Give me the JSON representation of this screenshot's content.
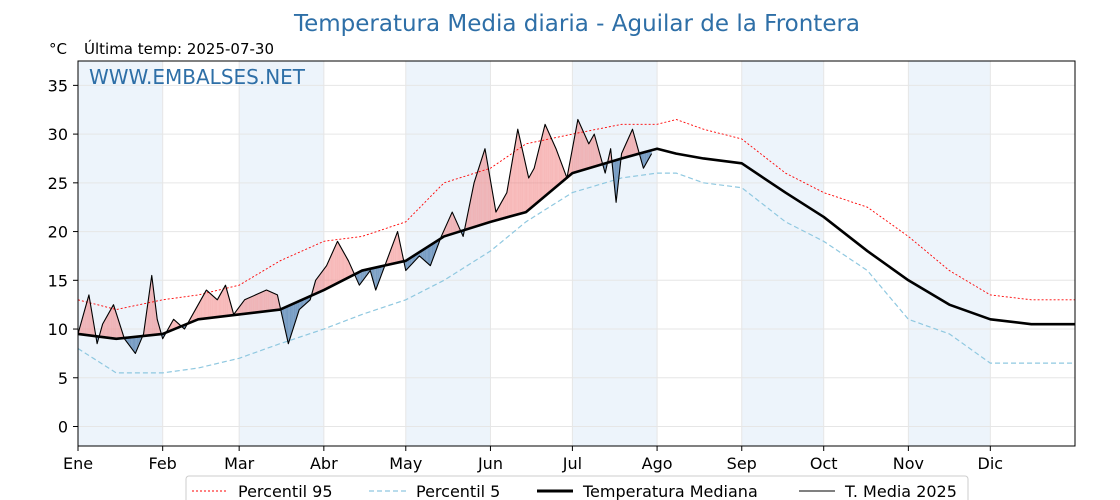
{
  "header": {
    "title": "Temperatura Media diaria - Aguilar de la Frontera",
    "unit": "°C",
    "subtitle": "Última temp: 2025-07-30",
    "watermark": "WWW.EMBALSES.NET"
  },
  "colors": {
    "p95": "#ff0000",
    "p5": "#8fc8e0",
    "median": "#000000",
    "current": "#000000",
    "above_fill": "#f08080",
    "below_fill": "#4f7fb0",
    "month_shade": "#e6f0fa"
  },
  "chart_data": {
    "type": "line",
    "title": "Temperatura Media diaria - Aguilar de la Frontera",
    "ylabel": "°C",
    "ylim": [
      -2,
      37.5
    ],
    "yticks": [
      0,
      5,
      10,
      15,
      20,
      25,
      30,
      35
    ],
    "xlim": [
      1,
      366
    ],
    "x_ticks": [
      {
        "label": "Ene",
        "day": 1
      },
      {
        "label": "Feb",
        "day": 32
      },
      {
        "label": "Mar",
        "day": 60
      },
      {
        "label": "Abr",
        "day": 91
      },
      {
        "label": "May",
        "day": 121
      },
      {
        "label": "Jun",
        "day": 152
      },
      {
        "label": "Jul",
        "day": 182
      },
      {
        "label": "Ago",
        "day": 213
      },
      {
        "label": "Sep",
        "day": 244
      },
      {
        "label": "Oct",
        "day": 274
      },
      {
        "label": "Nov",
        "day": 305
      },
      {
        "label": "Dic",
        "day": 335
      }
    ],
    "grid": true,
    "legend_placement": "bottom-center",
    "series": [
      {
        "name": "Percentil 95",
        "x": [
          1,
          15,
          32,
          45,
          60,
          75,
          91,
          105,
          121,
          135,
          152,
          165,
          182,
          200,
          213,
          220,
          230,
          244,
          260,
          274,
          290,
          305,
          320,
          335,
          350,
          366
        ],
        "values": [
          13.0,
          12.0,
          13.0,
          13.5,
          14.5,
          17.0,
          19.0,
          19.5,
          21.0,
          25.0,
          26.5,
          29.0,
          30.0,
          31.0,
          31.0,
          31.5,
          30.5,
          29.5,
          26.0,
          24.0,
          22.5,
          19.5,
          16.0,
          13.5,
          13.0,
          13.0
        ]
      },
      {
        "name": "Percentil 5",
        "x": [
          1,
          15,
          32,
          45,
          60,
          75,
          91,
          105,
          121,
          135,
          152,
          165,
          182,
          200,
          213,
          220,
          230,
          244,
          260,
          274,
          290,
          305,
          320,
          335,
          350,
          366
        ],
        "values": [
          8.0,
          5.5,
          5.5,
          6.0,
          7.0,
          8.5,
          10.0,
          11.5,
          13.0,
          15.0,
          18.0,
          21.0,
          24.0,
          25.5,
          26.0,
          26.0,
          25.0,
          24.5,
          21.0,
          19.0,
          16.0,
          11.0,
          9.5,
          6.5,
          6.5,
          6.5
        ]
      },
      {
        "name": "Temperatura Mediana",
        "x": [
          1,
          15,
          32,
          45,
          60,
          75,
          91,
          105,
          121,
          135,
          152,
          165,
          182,
          200,
          213,
          220,
          230,
          244,
          260,
          274,
          290,
          305,
          320,
          335,
          350,
          366
        ],
        "values": [
          9.5,
          9.0,
          9.5,
          11.0,
          11.5,
          12.0,
          14.0,
          16.0,
          17.0,
          19.5,
          21.0,
          22.0,
          26.0,
          27.5,
          28.5,
          28.0,
          27.5,
          27.0,
          24.0,
          21.5,
          18.0,
          15.0,
          12.5,
          11.0,
          10.5,
          10.5
        ]
      },
      {
        "name": "T. Media 2025",
        "x": [
          1,
          5,
          8,
          10,
          14,
          18,
          22,
          25,
          28,
          30,
          32,
          36,
          40,
          44,
          48,
          52,
          55,
          58,
          62,
          66,
          70,
          74,
          78,
          82,
          86,
          88,
          92,
          96,
          100,
          104,
          108,
          110,
          114,
          118,
          121,
          126,
          130,
          134,
          138,
          142,
          146,
          150,
          154,
          158,
          162,
          166,
          168,
          172,
          176,
          180,
          184,
          188,
          190,
          194,
          196,
          198,
          200,
          204,
          208,
          211
        ],
        "values": [
          9.5,
          13.5,
          8.5,
          10.5,
          12.5,
          9.0,
          7.5,
          9.5,
          15.5,
          11.0,
          9.0,
          11.0,
          10.0,
          12.0,
          14.0,
          13.0,
          14.5,
          11.5,
          13.0,
          13.5,
          14.0,
          13.5,
          8.5,
          12.0,
          13.0,
          15.0,
          16.5,
          19.0,
          17.0,
          14.5,
          16.0,
          14.0,
          17.0,
          20.0,
          16.0,
          17.5,
          16.5,
          19.5,
          22.0,
          19.5,
          25.0,
          28.5,
          22.0,
          24.0,
          30.5,
          25.5,
          26.5,
          31.0,
          28.5,
          25.5,
          31.5,
          29.0,
          30.0,
          26.0,
          28.5,
          23.0,
          28.0,
          30.5,
          26.5,
          28.0
        ]
      }
    ]
  },
  "legend": {
    "items": [
      {
        "label": "Percentil 95"
      },
      {
        "label": "Percentil 5"
      },
      {
        "label": "Temperatura Mediana"
      },
      {
        "label": "T. Media 2025"
      }
    ]
  }
}
